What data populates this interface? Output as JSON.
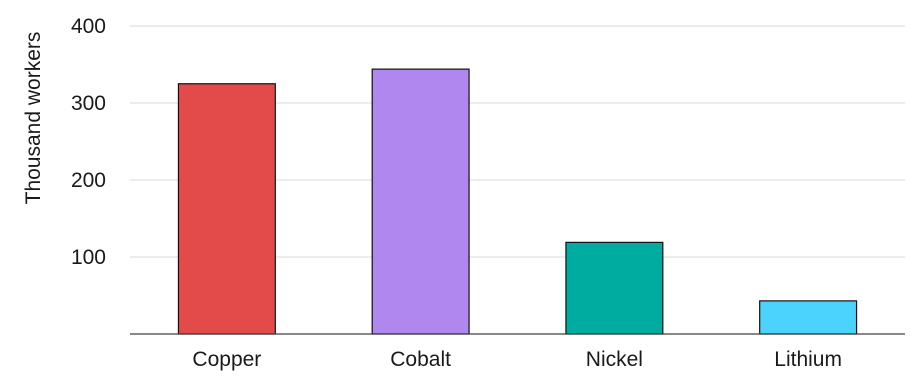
{
  "chart_data": {
    "type": "bar",
    "title": "",
    "xlabel": "",
    "ylabel": "Thousand workers",
    "categories": [
      "Copper",
      "Cobalt",
      "Nickel",
      "Lithium"
    ],
    "values": [
      325,
      344,
      119,
      43
    ],
    "colors": [
      "#e24b4a",
      "#b087ef",
      "#00ab9f",
      "#4bd3fd"
    ],
    "ylim": [
      0,
      400
    ],
    "yticks": [
      100,
      200,
      300,
      400
    ],
    "ytick_labels": [
      "100",
      "200",
      "300",
      "400"
    ],
    "grid": true,
    "legend": "none"
  }
}
